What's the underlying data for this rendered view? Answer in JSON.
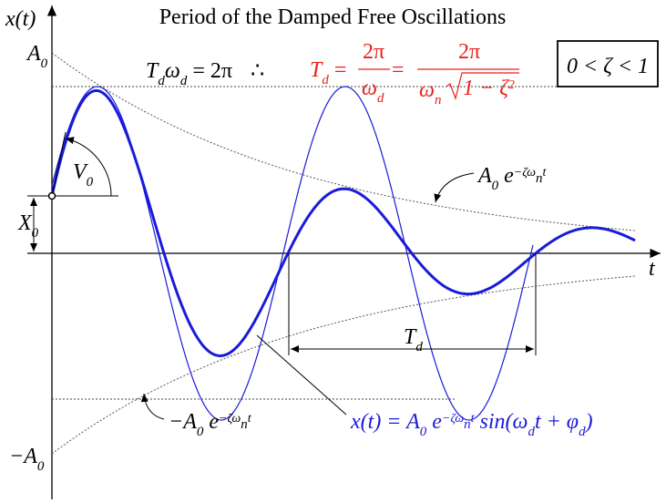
{
  "title": "Period of the Damped Free Oscillations",
  "y_axis_label": "x(t)",
  "t_axis_label": "t",
  "amplitude_top": [
    "A",
    "0"
  ],
  "amplitude_bottom": [
    "−A",
    "0"
  ],
  "initial_velocity": [
    "V",
    "0"
  ],
  "initial_displacement": [
    "X",
    "0"
  ],
  "period_label": [
    "T",
    "d"
  ],
  "period_relation": [
    "T",
    "d",
    "ω",
    "d",
    " = 2π",
    "∴"
  ],
  "period_formula": [
    "T",
    "d",
    " = ",
    "2π",
    "ω",
    "d",
    " = ",
    "2π",
    "ω",
    "n",
    "1 − ζ",
    "2"
  ],
  "damping_range": "0 < ζ < 1",
  "envelope_upper": [
    "A",
    "0",
    " e",
    "−ζω",
    "n",
    "t"
  ],
  "envelope_lower": [
    "−A",
    "0",
    " e",
    "−ζω",
    "n",
    "t"
  ],
  "response": [
    "x(t) = A",
    "0",
    " e",
    "−ζω",
    "n",
    "t",
    " sin(ω",
    "d",
    "t + φ",
    "d",
    ")"
  ]
}
